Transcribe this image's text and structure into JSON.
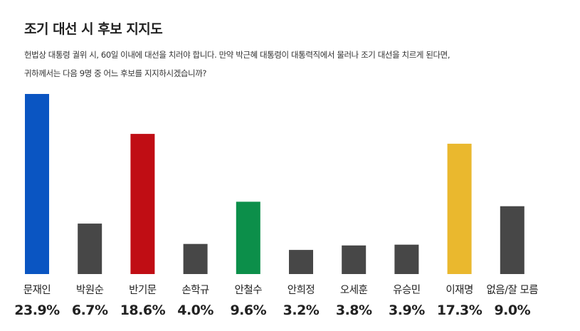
{
  "title": "조기 대선 시 후보 지지도",
  "subtitle_lines": [
    "헌법상 대통령 궐위 시, 60일 이내에 대선을 치러야 합니다. 만약 박근혜 대통령이 대통력직에서 물러나 조기 대선을 치르게 된다면,",
    "귀하께서는 다음 9명 중 어느 후보를 지지하시겠습니까?"
  ],
  "chart_data": {
    "type": "bar",
    "categories": [
      "문재인",
      "박원순",
      "반기문",
      "손학규",
      "안철수",
      "안희정",
      "오세훈",
      "유승민",
      "이재명",
      "없음/잘 모름"
    ],
    "values": [
      23.9,
      6.7,
      18.6,
      4.0,
      9.6,
      3.2,
      3.8,
      3.9,
      17.3,
      9.0
    ],
    "value_labels": [
      "23.9%",
      "6.7%",
      "18.6%",
      "4.0%",
      "9.6%",
      "3.2%",
      "3.8%",
      "3.9%",
      "17.3%",
      "9.0%"
    ],
    "colors": [
      "#0a55c2",
      "#474747",
      "#c00d14",
      "#474747",
      "#0c8f4a",
      "#474747",
      "#474747",
      "#474747",
      "#eab82e",
      "#474747"
    ],
    "ylim": [
      0,
      23.9
    ],
    "grid": false,
    "legend": "none"
  }
}
